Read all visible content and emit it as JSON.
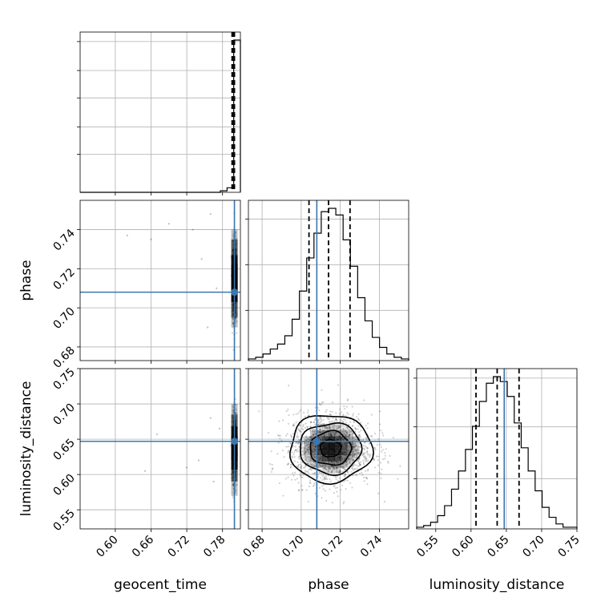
{
  "chart_data": {
    "type": "corner",
    "parameters": [
      "geocent_time",
      "phase",
      "luminosity_distance"
    ],
    "truth_color": "#3a76af",
    "truths": {
      "geocent_time": 0.8,
      "phase": 0.708,
      "luminosity_distance": 0.647
    },
    "quantiles": {
      "geocent_time": [
        0.796,
        0.798,
        0.8
      ],
      "phase": [
        0.704,
        0.714,
        0.725
      ],
      "luminosity_distance": [
        0.607,
        0.637,
        0.668
      ]
    },
    "ranges": {
      "geocent_time": [
        0.541,
        0.81
      ],
      "phase": [
        0.673,
        0.755
      ],
      "luminosity_distance": [
        0.523,
        0.75
      ]
    },
    "ticks": {
      "geocent_time": [
        "0.60",
        "0.66",
        "0.72",
        "0.78"
      ],
      "phase_x": [
        "0.68",
        "0.70",
        "0.72",
        "0.74"
      ],
      "phase_y": [
        "0.68",
        "0.70",
        "0.72",
        "0.74"
      ],
      "luminosity_distance_x": [
        "0.55",
        "0.60",
        "0.65",
        "0.70",
        "0.75"
      ],
      "luminosity_distance_y": [
        "0.55",
        "0.60",
        "0.65",
        "0.70",
        "0.75"
      ]
    },
    "histograms": {
      "phase": {
        "edges": [
          0.673,
          0.755
        ],
        "counts": [
          1,
          2,
          4,
          7,
          10,
          15,
          25,
          42,
          62,
          77,
          90,
          92,
          88,
          73,
          57,
          38,
          24,
          14,
          8,
          4,
          2,
          1
        ]
      },
      "luminosity_distance": {
        "edges": [
          0.523,
          0.75
        ],
        "counts": [
          1,
          2,
          4,
          8,
          14,
          24,
          35,
          48,
          62,
          77,
          88,
          92,
          89,
          80,
          64,
          49,
          35,
          23,
          13,
          7,
          3,
          1,
          1
        ]
      },
      "geocent_time": {
        "edges": [
          0.541,
          0.81
        ],
        "counts": [
          0,
          0,
          0,
          0,
          0,
          0,
          0,
          0,
          0,
          0,
          0,
          0,
          0,
          0,
          0,
          0,
          0,
          0,
          0,
          0,
          0,
          1,
          3,
          100
        ]
      }
    },
    "xlabels": [
      "geocent_time",
      "phase",
      "luminosity_distance"
    ],
    "ylabels": [
      "phase",
      "luminosity_distance"
    ],
    "grid": true
  }
}
